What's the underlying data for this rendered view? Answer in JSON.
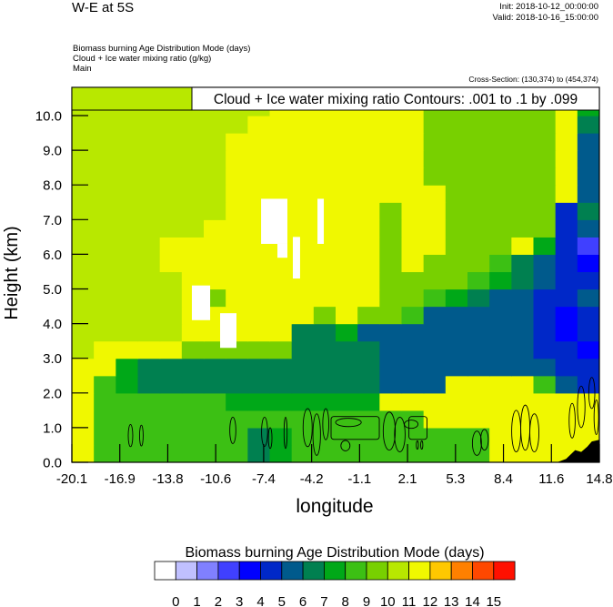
{
  "header": {
    "title": "W-E at 5S",
    "init": "Init: 2018-10-12_00:00:00",
    "valid": "Valid: 2018-10-16_15:00:00",
    "fields": [
      "Biomass burning Age Distribution Mode   (days)",
      "Cloud + Ice water mixing ratio   (g/kg)",
      "Main"
    ],
    "cross_section": "Cross-Section: (130,374) to (454,374)"
  },
  "chart_data": {
    "type": "heatmap",
    "title": "",
    "xlabel": "longitude",
    "ylabel": "Height (km)",
    "xlim": [
      -20.1,
      14.8
    ],
    "ylim": [
      0,
      10.8
    ],
    "x_ticks": [
      "-20.1",
      "-16.9",
      "-13.8",
      "-10.6",
      "-7.4",
      "-4.2",
      "-1.1",
      "2.1",
      "5.3",
      "8.4",
      "11.6",
      "14.8"
    ],
    "y_ticks": [
      "0.0",
      "1.0",
      "2.0",
      "3.0",
      "4.0",
      "5.0",
      "6.0",
      "7.0",
      "8.0",
      "9.0",
      "10.0"
    ],
    "grid": false,
    "contour_legend": "Cloud + Ice water mixing ratio Contours: .001 to .1 by .099",
    "contour_legend_color": "#b8e800",
    "colorbar": {
      "title": "Biomass burning Age Distribution Mode  (days)",
      "labels": [
        "0",
        "1",
        "2",
        "3",
        "4",
        "5",
        "6",
        "7",
        "8",
        "9",
        "10",
        "11",
        "12",
        "13",
        "14",
        "15"
      ],
      "colors": [
        "#ffffff",
        "#c0c0ff",
        "#8080ff",
        "#4040ff",
        "#0000ff",
        "#0028c8",
        "#005a8c",
        "#008050",
        "#00a818",
        "#3cc014",
        "#78d000",
        "#b8e800",
        "#f0f800",
        "#ffc800",
        "#ff8000",
        "#ff4800",
        "#ff1000"
      ]
    },
    "field_age_days": {
      "row_height_km": 0.5,
      "rows_bottom_to_top": [
        [
          11.5,
          8.5,
          8.5,
          8.5,
          8.5,
          8.5,
          8.5,
          8.5,
          6.5,
          7.5,
          8.5,
          8.5,
          8.5,
          8.5,
          8.5,
          8.5,
          8.5,
          8.5,
          8.5,
          11.5,
          11.5,
          11.5,
          11.5,
          11.5
        ],
        [
          11.5,
          8.5,
          8.5,
          8.5,
          8.5,
          8.5,
          8.5,
          8.5,
          6.5,
          7.5,
          8.5,
          8.5,
          8.5,
          8.5,
          8.5,
          8.5,
          8.5,
          8.5,
          8.5,
          11.5,
          11.5,
          11.5,
          11.5,
          11.5
        ],
        [
          11.5,
          8.5,
          8.5,
          8.5,
          8.5,
          8.5,
          8.5,
          8.5,
          8.5,
          8.5,
          8.5,
          8.5,
          8.5,
          8.5,
          8.5,
          8.5,
          11.5,
          11.5,
          11.5,
          11.5,
          11.5,
          11.5,
          11.5,
          11.5
        ],
        [
          11.5,
          8.5,
          8.5,
          8.5,
          8.5,
          8.5,
          8.5,
          7.5,
          7.5,
          7.5,
          7.5,
          7.5,
          7.5,
          7.5,
          11.5,
          11.5,
          11.5,
          11.5,
          11.5,
          11.5,
          11.5,
          11.5,
          11.5,
          11.5
        ],
        [
          11.5,
          8.5,
          7.5,
          6.5,
          6.5,
          6.5,
          6.5,
          6.5,
          6.5,
          6.5,
          6.5,
          6.5,
          6.5,
          6.5,
          5.5,
          5.5,
          5.5,
          11.5,
          11.5,
          11.5,
          11.5,
          8.5,
          5.5,
          4.5
        ],
        [
          11.5,
          11.5,
          7.5,
          6.5,
          6.5,
          6.5,
          6.5,
          6.5,
          6.5,
          6.5,
          6.5,
          6.5,
          6.5,
          6.5,
          5.5,
          5.5,
          5.5,
          5.5,
          5.5,
          5.5,
          5.5,
          5.5,
          4.5,
          4.5
        ],
        [
          10.5,
          11.5,
          11.5,
          11.5,
          11.5,
          9.5,
          9.5,
          9.5,
          9.5,
          9.5,
          6.5,
          6.5,
          6.5,
          6.5,
          5.5,
          5.5,
          5.5,
          5.5,
          5.5,
          5.5,
          5.5,
          4.5,
          4.5,
          3.5
        ],
        [
          10.5,
          10.5,
          10.5,
          10.5,
          10.5,
          11.5,
          11.5,
          11.5,
          11.5,
          11.5,
          6.5,
          6.5,
          7.5,
          5.5,
          5.5,
          5.5,
          5.5,
          5.5,
          5.5,
          5.5,
          5.5,
          4.5,
          3.5,
          4.5
        ],
        [
          10.5,
          10.5,
          10.5,
          10.5,
          10.5,
          11.5,
          11.5,
          11.5,
          11.5,
          11.5,
          11.5,
          9.5,
          11.5,
          9.5,
          9.5,
          8.5,
          5.5,
          5.5,
          5.5,
          5.5,
          5.5,
          4.5,
          3.5,
          4.5
        ],
        [
          10.5,
          10.5,
          10.5,
          10.5,
          10.5,
          11.5,
          9.5,
          11.5,
          11.5,
          11.5,
          11.5,
          11.5,
          11.5,
          11.5,
          9.5,
          9.5,
          8.5,
          7.5,
          6.5,
          5.5,
          5.5,
          4.5,
          4.5,
          5.5
        ],
        [
          10.5,
          10.5,
          10.5,
          10.5,
          10.5,
          11.5,
          11.5,
          11.5,
          11.5,
          11.5,
          11.5,
          11.5,
          11.5,
          11.5,
          9.5,
          9.5,
          9.5,
          9.5,
          8.5,
          7.5,
          6.5,
          5.5,
          4.5,
          4.5
        ],
        [
          10.5,
          10.5,
          10.5,
          10.5,
          11.5,
          11.5,
          11.5,
          11.5,
          11.5,
          11.5,
          11.5,
          11.5,
          11.5,
          11.5,
          9.5,
          11.5,
          9.5,
          9.5,
          9.5,
          8.5,
          6.5,
          5.5,
          4.5,
          3.5
        ],
        [
          10.5,
          10.5,
          10.5,
          10.5,
          11.5,
          11.5,
          11.5,
          11.5,
          11.5,
          11.5,
          11.5,
          11.5,
          11.5,
          11.5,
          9.5,
          11.5,
          11.5,
          9.5,
          9.5,
          9.5,
          11.5,
          7.5,
          4.5,
          2.5
        ],
        [
          10.5,
          10.5,
          10.5,
          10.5,
          10.5,
          10.5,
          11.5,
          11.5,
          11.5,
          11.5,
          11.5,
          11.5,
          11.5,
          11.5,
          9.5,
          11.5,
          11.5,
          9.5,
          9.5,
          9.5,
          9.5,
          9.5,
          4.5,
          5.5
        ],
        [
          10.5,
          10.5,
          10.5,
          10.5,
          10.5,
          10.5,
          10.5,
          11.5,
          11.5,
          11.5,
          11.5,
          11.5,
          11.5,
          11.5,
          9.5,
          11.5,
          11.5,
          9.5,
          9.5,
          9.5,
          9.5,
          9.5,
          4.5,
          6.5
        ],
        [
          10.5,
          10.5,
          10.5,
          10.5,
          10.5,
          10.5,
          10.5,
          11.5,
          11.5,
          11.5,
          11.5,
          11.5,
          11.5,
          11.5,
          11.5,
          11.5,
          11.5,
          9.5,
          9.5,
          9.5,
          9.5,
          9.5,
          11.5,
          5.5
        ],
        [
          10.5,
          10.5,
          10.5,
          10.5,
          10.5,
          10.5,
          10.5,
          11.5,
          11.5,
          11.5,
          11.5,
          11.5,
          11.5,
          11.5,
          11.5,
          11.5,
          9.5,
          9.5,
          9.5,
          9.5,
          9.5,
          9.5,
          11.5,
          5.5
        ],
        [
          10.5,
          10.5,
          10.5,
          10.5,
          10.5,
          10.5,
          10.5,
          11.5,
          11.5,
          11.5,
          11.5,
          11.5,
          11.5,
          11.5,
          11.5,
          11.5,
          9.5,
          9.5,
          9.5,
          9.5,
          9.5,
          9.5,
          11.5,
          5.5
        ],
        [
          10.5,
          10.5,
          10.5,
          10.5,
          10.5,
          10.5,
          10.5,
          11.5,
          11.5,
          11.5,
          11.5,
          11.5,
          11.5,
          11.5,
          11.5,
          11.5,
          9.5,
          9.5,
          9.5,
          9.5,
          9.5,
          9.5,
          11.5,
          5.5
        ],
        [
          10.5,
          10.5,
          10.5,
          10.5,
          10.5,
          10.5,
          10.5,
          10.5,
          11.5,
          11.5,
          11.5,
          11.5,
          11.5,
          11.5,
          11.5,
          11.5,
          9.5,
          9.5,
          9.5,
          9.5,
          9.5,
          9.5,
          11.5,
          6.5
        ],
        [
          10.5,
          10.5,
          10.5,
          10.5,
          10.5,
          10.5,
          10.5,
          10.5,
          10.5,
          11.5,
          11.5,
          11.5,
          11.5,
          11.5,
          11.5,
          11.5,
          9.5,
          9.5,
          9.5,
          9.5,
          9.5,
          9.5,
          11.5,
          7.5
        ],
        [
          10.5,
          10.5,
          10.5,
          10.5,
          10.5,
          10.5,
          10.5,
          10.5,
          10.5,
          11.5,
          11.5,
          11.5,
          11.5,
          11.5,
          11.5,
          11.5,
          9.5,
          9.5,
          9.5,
          9.5,
          9.5,
          9.5,
          11.5,
          7.5
        ]
      ]
    },
    "missing_regions": [
      {
        "lon": [
          -7.58,
          -5.84
        ],
        "height": [
          6.3,
          7.6
        ]
      },
      {
        "lon": [
          -6.5,
          -5.84
        ],
        "height": [
          5.9,
          6.3
        ]
      },
      {
        "lon": [
          -5.48,
          -5.0
        ],
        "height": [
          5.3,
          6.5
        ]
      },
      {
        "lon": [
          -3.85,
          -3.43
        ],
        "height": [
          6.3,
          7.6
        ]
      },
      {
        "lon": [
          -12.16,
          -10.95
        ],
        "height": [
          4.1,
          5.1
        ]
      },
      {
        "lon": [
          -10.29,
          -9.21
        ],
        "height": [
          3.3,
          4.3
        ]
      }
    ],
    "terrain": [
      [
        12.0,
        0
      ],
      [
        12.6,
        0.1
      ],
      [
        13.2,
        0.35
      ],
      [
        13.6,
        0.3
      ],
      [
        14.0,
        0.45
      ],
      [
        14.3,
        0.6
      ],
      [
        14.8,
        0.65
      ]
    ],
    "contours_cloud_ice": [
      {
        "shape": "ellipse",
        "lon": -16.22,
        "height": 0.77,
        "dlon": 0.15,
        "dheight": 0.32
      },
      {
        "shape": "ellipse",
        "lon": -15.5,
        "height": 0.77,
        "dlon": 0.12,
        "dheight": 0.3
      },
      {
        "shape": "ellipse",
        "lon": -9.45,
        "height": 0.92,
        "dlon": 0.2,
        "dheight": 0.38
      },
      {
        "shape": "ellipse",
        "lon": -7.35,
        "height": 0.88,
        "dlon": 0.2,
        "dheight": 0.42
      },
      {
        "shape": "ellipse",
        "lon": -6.98,
        "height": 0.7,
        "dlon": 0.12,
        "dheight": 0.3
      },
      {
        "shape": "ellipse",
        "lon": -5.96,
        "height": 0.85,
        "dlon": 0.1,
        "dheight": 0.45
      },
      {
        "shape": "ellipse",
        "lon": -4.5,
        "height": 1.0,
        "dlon": 0.3,
        "dheight": 0.55
      },
      {
        "shape": "ellipse",
        "lon": -3.9,
        "height": 0.8,
        "dlon": 0.25,
        "dheight": 0.6
      },
      {
        "shape": "ellipse",
        "lon": -3.3,
        "height": 1.1,
        "dlon": 0.2,
        "dheight": 0.45
      },
      {
        "shape": "box",
        "lon": -2.95,
        "height": 0.66,
        "lon2": 0.24,
        "height2": 1.32
      },
      {
        "shape": "ellipse",
        "lon": -1.8,
        "height": 1.15,
        "dlon": 0.85,
        "dheight": 0.12
      },
      {
        "shape": "ellipse",
        "lon": -2.0,
        "height": 0.48,
        "dlon": 0.3,
        "dheight": 0.15
      },
      {
        "shape": "ellipse",
        "lon": 0.9,
        "height": 0.9,
        "dlon": 0.4,
        "dheight": 0.55
      },
      {
        "shape": "ellipse",
        "lon": 1.6,
        "height": 0.8,
        "dlon": 0.35,
        "dheight": 0.5
      },
      {
        "shape": "box",
        "lon": 2.2,
        "height": 0.66,
        "lon2": 3.4,
        "height2": 1.32
      },
      {
        "shape": "ellipse",
        "lon": 2.35,
        "height": 1.1,
        "dlon": 0.45,
        "dheight": 0.12
      },
      {
        "shape": "ellipse",
        "lon": 2.76,
        "height": 0.5,
        "dlon": 0.07,
        "dheight": 0.12
      },
      {
        "shape": "ellipse",
        "lon": 3.05,
        "height": 0.5,
        "dlon": 0.07,
        "dheight": 0.12
      },
      {
        "shape": "ellipse",
        "lon": 6.7,
        "height": 0.55,
        "dlon": 0.3,
        "dheight": 0.35
      },
      {
        "shape": "ellipse",
        "lon": 7.2,
        "height": 0.65,
        "dlon": 0.25,
        "dheight": 0.3
      },
      {
        "shape": "ellipse",
        "lon": 9.3,
        "height": 0.9,
        "dlon": 0.3,
        "dheight": 0.6
      },
      {
        "shape": "ellipse",
        "lon": 9.9,
        "height": 1.0,
        "dlon": 0.3,
        "dheight": 0.65
      },
      {
        "shape": "ellipse",
        "lon": 10.5,
        "height": 0.85,
        "dlon": 0.3,
        "dheight": 0.55
      },
      {
        "shape": "ellipse",
        "lon": 13.0,
        "height": 1.2,
        "dlon": 0.2,
        "dheight": 0.5
      },
      {
        "shape": "ellipse",
        "lon": 13.6,
        "height": 1.6,
        "dlon": 0.25,
        "dheight": 0.6
      },
      {
        "shape": "ellipse",
        "lon": 14.3,
        "height": 2.0,
        "dlon": 0.2,
        "dheight": 0.45
      },
      {
        "shape": "ellipse",
        "lon": 14.6,
        "height": 1.3,
        "dlon": 0.15,
        "dheight": 0.5
      }
    ]
  }
}
